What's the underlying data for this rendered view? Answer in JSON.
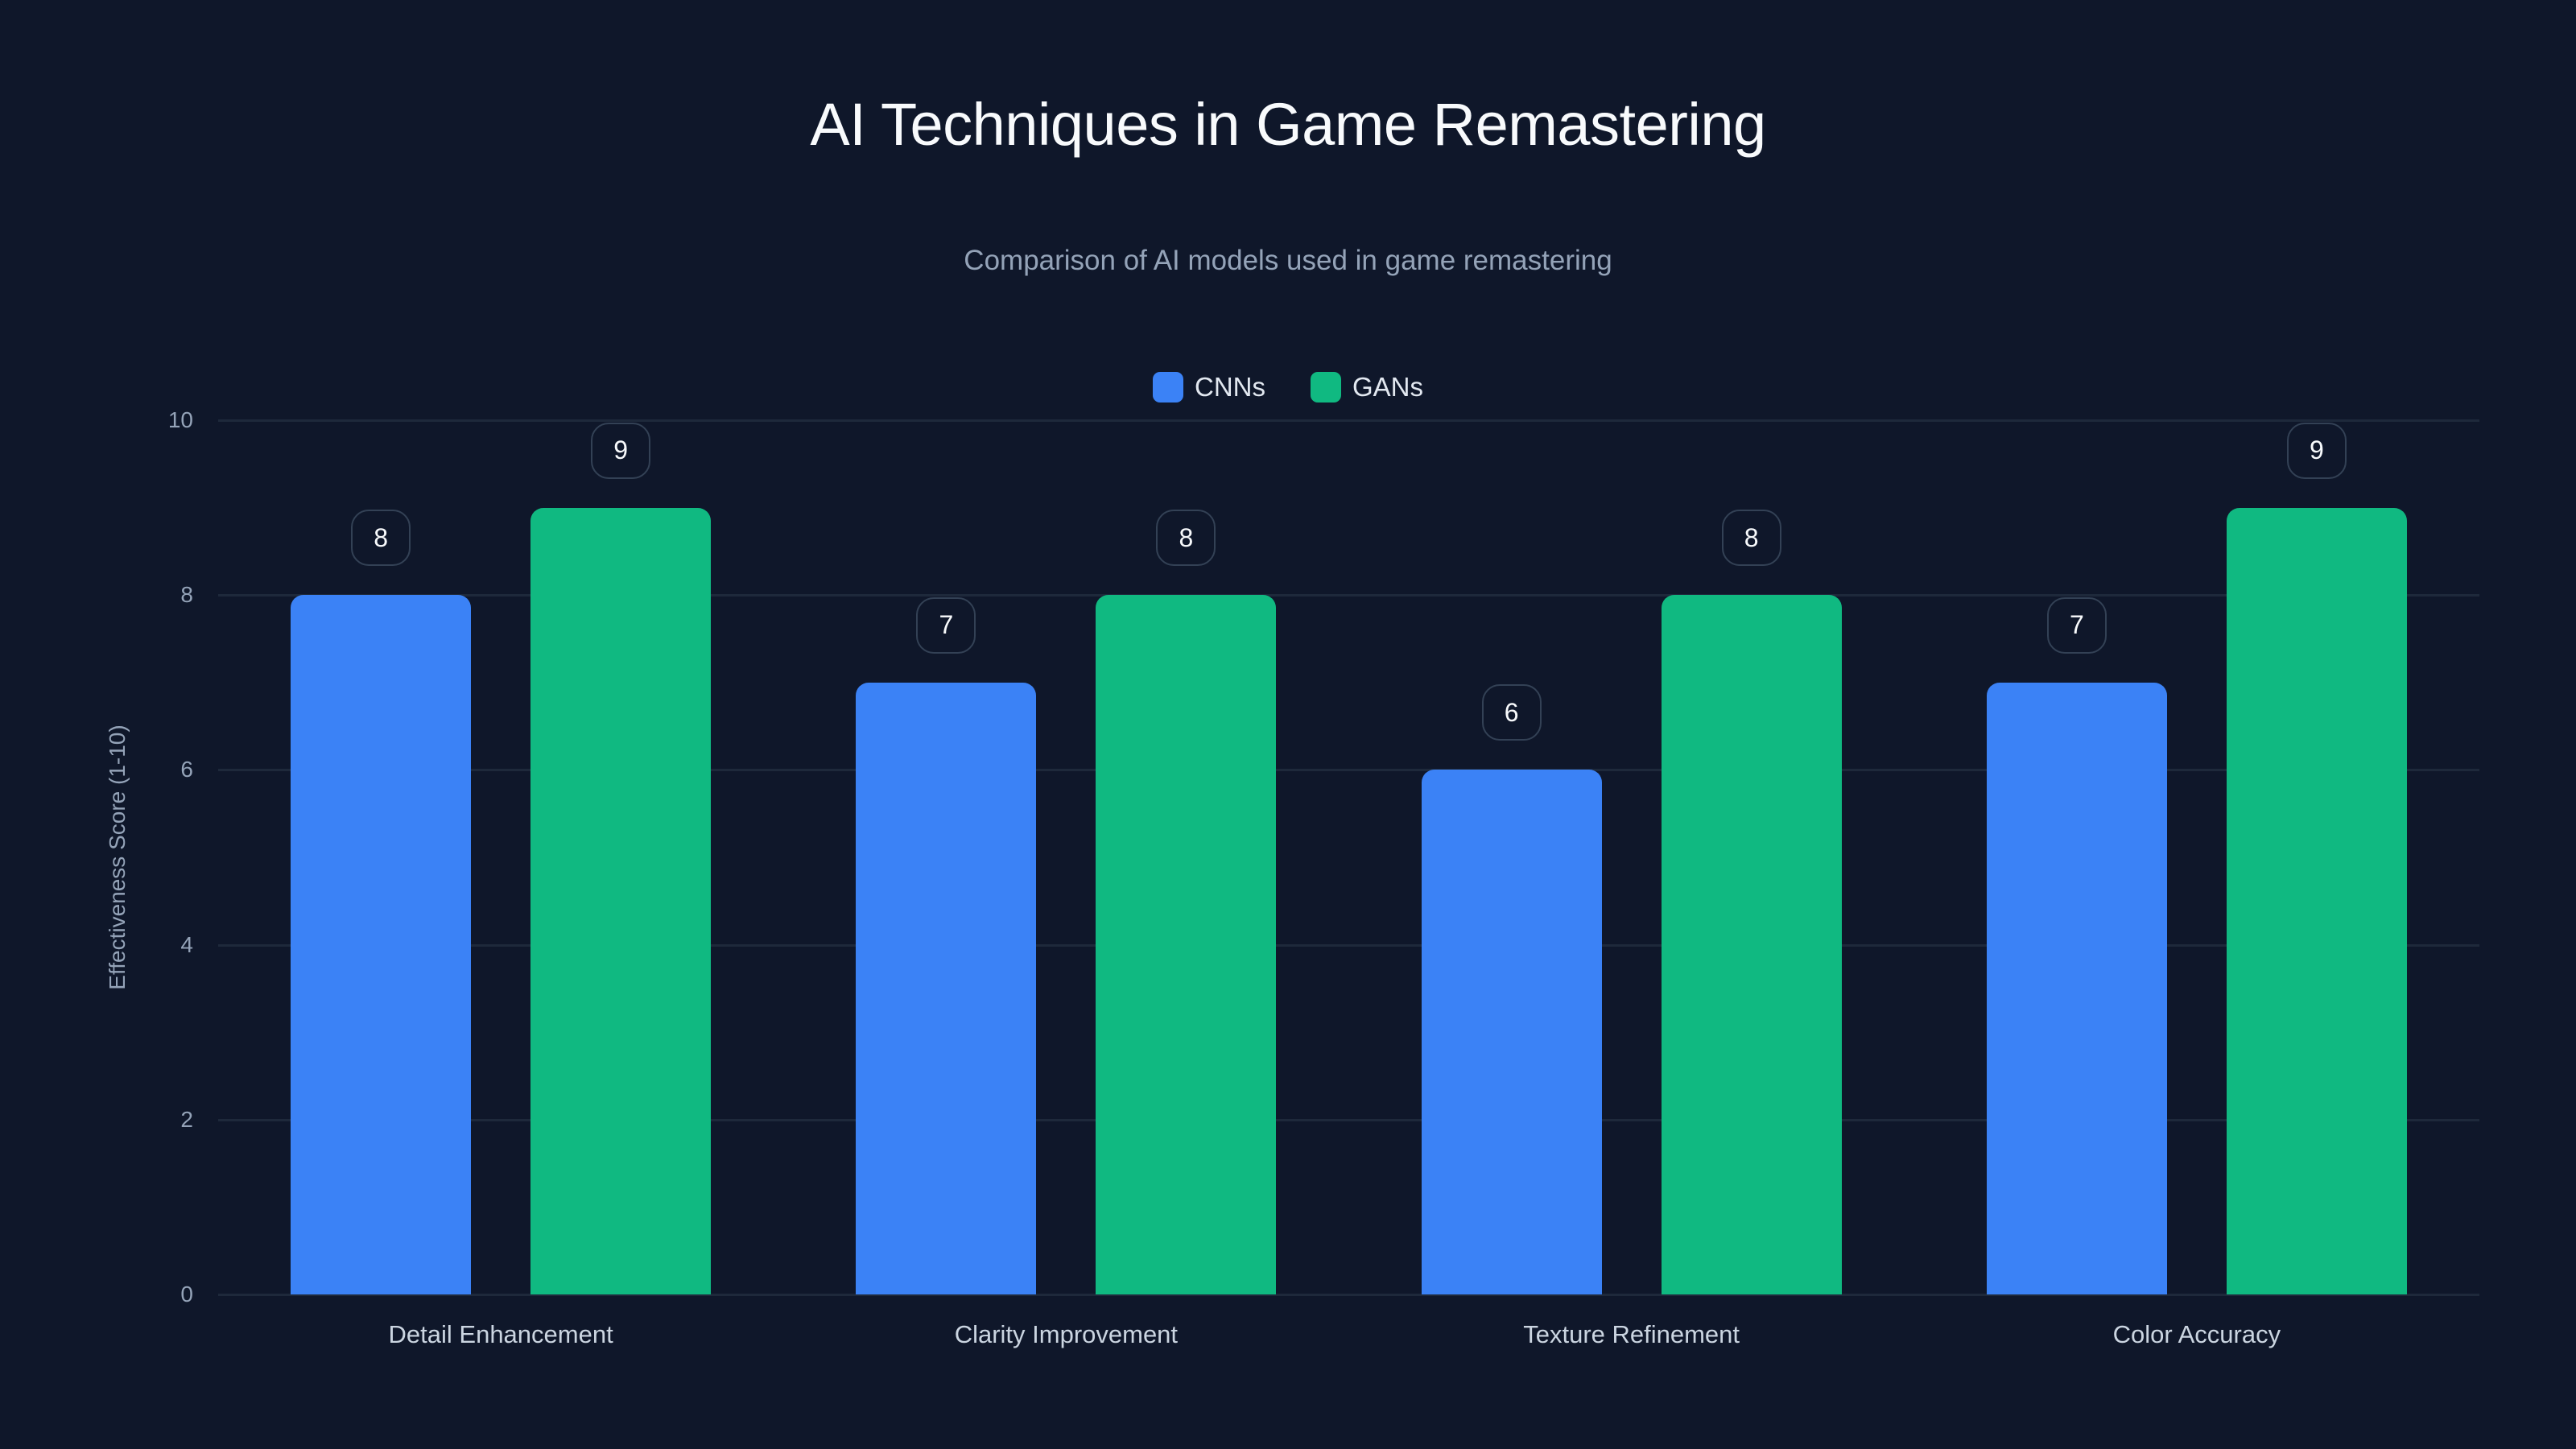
{
  "title": "AI Techniques in Game Remastering",
  "subtitle": "Comparison of AI models used in game remastering",
  "legend": [
    {
      "label": "CNNs",
      "color": "#3b82f6"
    },
    {
      "label": "GANs",
      "color": "#10b981"
    }
  ],
  "y_axis": {
    "label": "Effectiveness Score (1-10)",
    "ticks": [
      "0",
      "2",
      "4",
      "6",
      "8",
      "10"
    ]
  },
  "chart_data": {
    "type": "bar",
    "title": "AI Techniques in Game Remastering",
    "subtitle": "Comparison of AI models used in game remastering",
    "categories": [
      "Detail Enhancement",
      "Clarity Improvement",
      "Texture Refinement",
      "Color Accuracy"
    ],
    "series": [
      {
        "name": "CNNs",
        "color": "#3b82f6",
        "values": [
          8,
          7,
          6,
          7
        ]
      },
      {
        "name": "GANs",
        "color": "#10b981",
        "values": [
          9,
          8,
          8,
          9
        ]
      }
    ],
    "xlabel": "",
    "ylabel": "Effectiveness Score (1-10)",
    "ylim": [
      0,
      10
    ],
    "yticks": [
      0,
      2,
      4,
      6,
      8,
      10
    ],
    "grid": true,
    "legend_position": "top-center",
    "data_labels": true
  }
}
